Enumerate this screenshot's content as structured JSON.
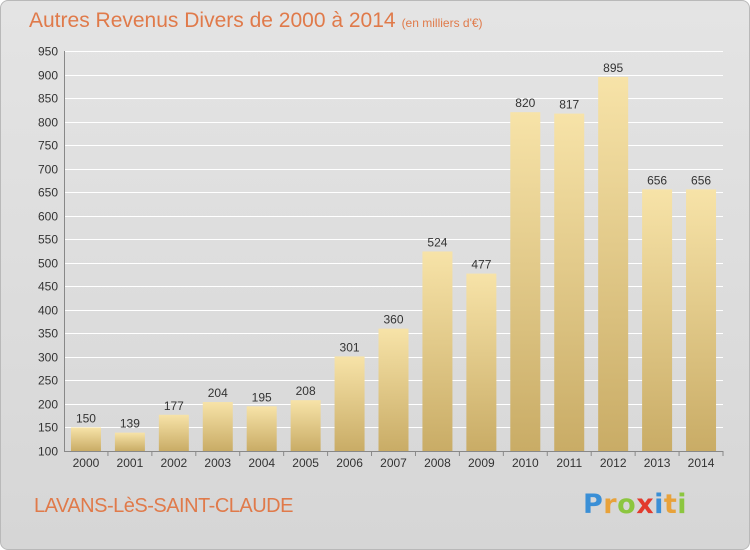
{
  "header": {
    "title": "Autres Revenus Divers de 2000 à 2014",
    "unit": "(en milliers d'€)"
  },
  "footer": {
    "commune": "LAVANS-LèS-SAINT-CLAUDE"
  },
  "logo": {
    "text": "Proxiti",
    "colors": [
      "#3a8fd6",
      "#e8a23a",
      "#8cc63f",
      "#e23b2e",
      "#3a8fd6",
      "#e8a23a",
      "#8cc63f"
    ]
  },
  "colors": {
    "bar_light": "#f7e3a8",
    "bar_dark": "#c9ac66",
    "title": "#e07a4a",
    "grid": "#ffffff"
  },
  "chart_data": {
    "type": "bar",
    "categories": [
      "2000",
      "2001",
      "2002",
      "2003",
      "2004",
      "2005",
      "2006",
      "2007",
      "2008",
      "2009",
      "2010",
      "2011",
      "2012",
      "2013",
      "2014"
    ],
    "values": [
      150,
      139,
      177,
      204,
      195,
      208,
      301,
      360,
      524,
      477,
      820,
      817,
      895,
      656,
      656
    ],
    "ylim": [
      100,
      950
    ],
    "yticks": [
      100,
      150,
      200,
      250,
      300,
      350,
      400,
      450,
      500,
      550,
      600,
      650,
      700,
      750,
      800,
      850,
      900,
      950
    ],
    "grid": true
  }
}
